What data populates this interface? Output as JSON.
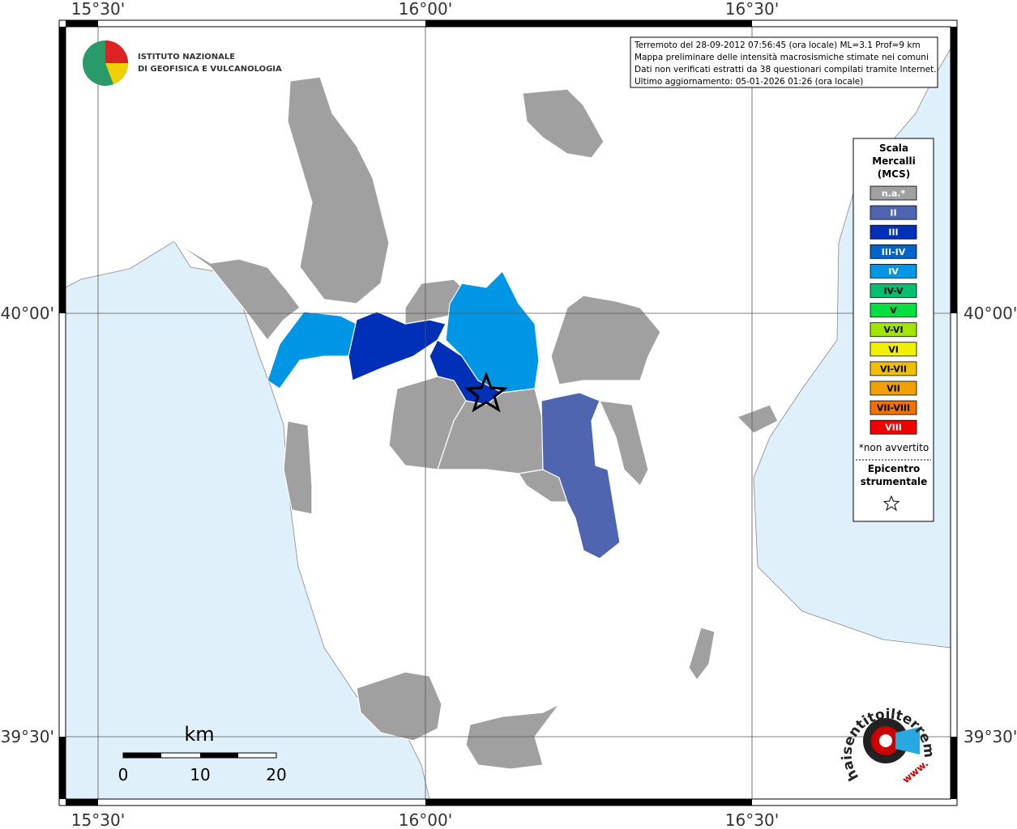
{
  "axis_labels": {
    "top": [
      "15°30'",
      "16°00'",
      "16°30'"
    ],
    "bottom": [
      "15°30'",
      "16°00'",
      "16°30'"
    ],
    "left": [
      "40°00'",
      "39°30'"
    ],
    "right": [
      "40°00'",
      "39°30'"
    ]
  },
  "logo": {
    "line1": "ISTITUTO NAZIONALE",
    "line2": "DI GEOFISICA E VULCANOLOGIA"
  },
  "info": [
    "Terremoto del 28-09-2012 07:56:45 (ora locale) ML=3.1 Prof=9 km",
    "Mappa preliminare delle intensità macrosismiche stimate nei comuni",
    "Dati non verificati estratti da 38 questionari compilati tramite Internet.",
    "Ultimo aggiornamento: 05-01-2026 01:26 (ora locale)"
  ],
  "legend": {
    "title": [
      "Scala",
      "Mercalli",
      "(MCS)"
    ],
    "items": [
      {
        "label": "n.a.*",
        "color": "#a0a0a0",
        "text_color": "#ffffff"
      },
      {
        "label": "II",
        "color": "#5065b0",
        "text_color": "#ffffff"
      },
      {
        "label": "III",
        "color": "#0030b8",
        "text_color": "#ffffff"
      },
      {
        "label": "III-IV",
        "color": "#0064c8",
        "text_color": "#ffffff"
      },
      {
        "label": "IV",
        "color": "#0096e6",
        "text_color": "#ffffff"
      },
      {
        "label": "IV-V",
        "color": "#00c070",
        "text_color": "#000000"
      },
      {
        "label": "V",
        "color": "#00e040",
        "text_color": "#000000"
      },
      {
        "label": "V-VI",
        "color": "#a0e600",
        "text_color": "#000000"
      },
      {
        "label": "VI",
        "color": "#f0f000",
        "text_color": "#000000"
      },
      {
        "label": "VI-VII",
        "color": "#f0c000",
        "text_color": "#000000"
      },
      {
        "label": "VII",
        "color": "#f0a000",
        "text_color": "#000000"
      },
      {
        "label": "VII-VIII",
        "color": "#f07000",
        "text_color": "#000000"
      },
      {
        "label": "VIII",
        "color": "#f00000",
        "text_color": "#ffffff"
      }
    ],
    "note": "*non avvertito",
    "epicenter_title": [
      "Epicentro",
      "strumentale"
    ]
  },
  "scale_bar": {
    "unit": "km",
    "labels": [
      "0",
      "10",
      "20"
    ]
  },
  "watermark": {
    "site": "haisentitoilterremoto.it",
    "prefix": "www."
  }
}
